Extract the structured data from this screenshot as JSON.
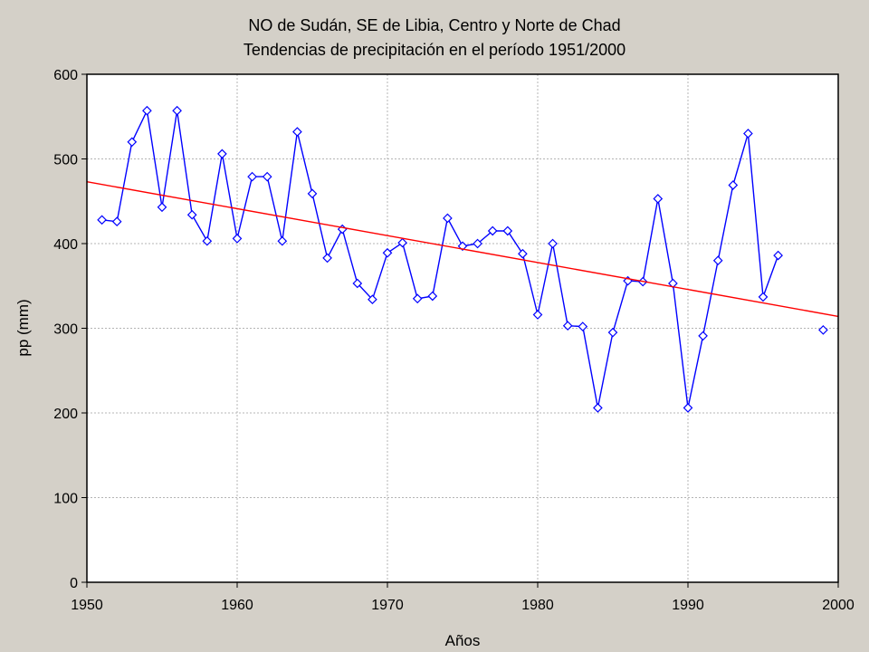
{
  "chart_data": {
    "type": "line",
    "title": "NO de Sudán, SE de Libia, Centro y Norte de Chad",
    "subtitle": "Tendencias de precipitación en el período 1951/2000",
    "xlabel": "Años",
    "ylabel": "pp (mm)",
    "xlim": [
      1950,
      2000
    ],
    "ylim": [
      0,
      600
    ],
    "xticks": [
      "1950",
      "1960",
      "1970",
      "1980",
      "1990",
      "2000"
    ],
    "yticks": [
      "0",
      "100",
      "200",
      "300",
      "400",
      "500",
      "600"
    ],
    "grid": true,
    "legend": "none",
    "series": [
      {
        "color": "#0000ff",
        "marker": "diamond-open",
        "segments": [
          {
            "x": [
              1951,
              1952,
              1953,
              1954,
              1955,
              1956,
              1957,
              1958,
              1959,
              1960,
              1961,
              1962,
              1963,
              1964,
              1965,
              1966,
              1967,
              1968,
              1969,
              1970,
              1971,
              1972,
              1973,
              1974,
              1975,
              1976,
              1977,
              1978,
              1979,
              1980,
              1981,
              1982,
              1983,
              1984,
              1985,
              1986,
              1987,
              1988,
              1989,
              1990,
              1991,
              1992,
              1993,
              1994,
              1995,
              1996
            ],
            "y": [
              428,
              426,
              520,
              557,
              443,
              557,
              434,
              403,
              506,
              406,
              479,
              479,
              403,
              532,
              459,
              383,
              417,
              353,
              334,
              389,
              401,
              335,
              338,
              430,
              397,
              400,
              415,
              415,
              388,
              316,
              400,
              303,
              302,
              206,
              295,
              356,
              355,
              453,
              353,
              206,
              291,
              380,
              469,
              530,
              337,
              386
            ]
          },
          {
            "x": [
              1999
            ],
            "y": [
              298
            ]
          }
        ]
      },
      {
        "color": "#ff0000",
        "marker": "none",
        "segments": [
          {
            "x": [
              1950,
              2000
            ],
            "y": [
              473,
              314
            ]
          }
        ]
      }
    ]
  }
}
